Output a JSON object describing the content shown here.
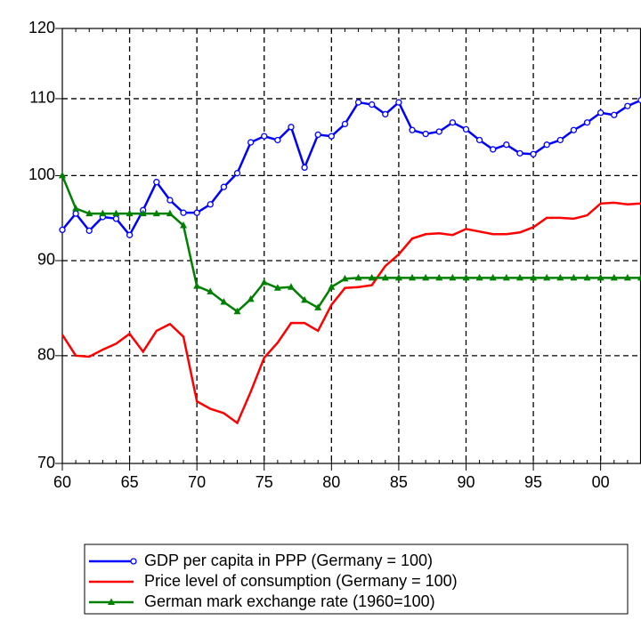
{
  "chart_data": {
    "type": "line",
    "log_scale": true,
    "grid": true,
    "legend": "bottom",
    "x": [
      1960,
      1961,
      1962,
      1963,
      1964,
      1965,
      1966,
      1967,
      1968,
      1969,
      1970,
      1971,
      1972,
      1973,
      1974,
      1975,
      1976,
      1977,
      1978,
      1979,
      1980,
      1981,
      1982,
      1983,
      1984,
      1985,
      1986,
      1987,
      1988,
      1989,
      1990,
      1991,
      1992,
      1993,
      1994,
      1995,
      1996,
      1997,
      1998,
      1999,
      2000,
      2001,
      2002,
      2003
    ],
    "xlim": [
      1960,
      2003
    ],
    "xticks": [
      {
        "value": 1960,
        "label": "60"
      },
      {
        "value": 1965,
        "label": "65"
      },
      {
        "value": 1970,
        "label": "70"
      },
      {
        "value": 1975,
        "label": "75"
      },
      {
        "value": 1980,
        "label": "80"
      },
      {
        "value": 1985,
        "label": "85"
      },
      {
        "value": 1990,
        "label": "90"
      },
      {
        "value": 1995,
        "label": "95"
      },
      {
        "value": 2000,
        "label": "00"
      }
    ],
    "ylim": [
      70,
      120
    ],
    "yticks": [
      70,
      80,
      90,
      100,
      110,
      120
    ],
    "series": [
      {
        "name": "GDP per capita in PPP (Germany = 100)",
        "color": "#0000ff",
        "marker": "circle",
        "values": [
          93.5,
          95.4,
          93.4,
          95.0,
          94.8,
          92.9,
          95.8,
          99.2,
          97.0,
          95.5,
          95.5,
          96.5,
          98.6,
          100.3,
          104.2,
          105.0,
          104.5,
          106.2,
          101.0,
          105.2,
          105.0,
          106.6,
          109.5,
          109.2,
          107.9,
          109.5,
          105.8,
          105.3,
          105.6,
          106.8,
          105.9,
          104.5,
          103.3,
          103.9,
          102.8,
          102.7,
          103.9,
          104.5,
          105.8,
          106.8,
          108.1,
          107.8,
          109.0,
          109.8
        ]
      },
      {
        "name": "Price level of consumption (Germany = 100)",
        "color": "#ff0000",
        "values": [
          82.1,
          80.0,
          79.9,
          80.6,
          81.2,
          82.2,
          80.4,
          82.5,
          83.2,
          81.9,
          75.6,
          74.9,
          74.5,
          73.6,
          76.5,
          79.8,
          81.3,
          83.3,
          83.3,
          82.5,
          85.2,
          87.0,
          87.1,
          87.3,
          89.4,
          90.7,
          92.5,
          93.0,
          93.1,
          92.9,
          93.6,
          93.3,
          93.0,
          93.0,
          93.2,
          93.8,
          94.9,
          94.9,
          94.8,
          95.2,
          96.6,
          96.7,
          96.5,
          96.6
        ]
      },
      {
        "name": "German mark exchange rate (1960=100)",
        "color": "#008000",
        "marker": "triangle",
        "values": [
          100,
          96.0,
          95.4,
          95.4,
          95.4,
          95.4,
          95.4,
          95.4,
          95.4,
          94.0,
          87.2,
          86.6,
          85.5,
          84.5,
          85.8,
          87.6,
          87.0,
          87.1,
          85.7,
          84.9,
          87.1,
          88.0,
          88.1,
          88.1,
          88.1,
          88.1,
          88.1,
          88.1,
          88.1,
          88.1,
          88.1,
          88.1,
          88.1,
          88.1,
          88.1,
          88.1,
          88.1,
          88.1,
          88.1,
          88.1,
          88.1,
          88.1,
          88.1,
          88.1
        ]
      }
    ]
  }
}
